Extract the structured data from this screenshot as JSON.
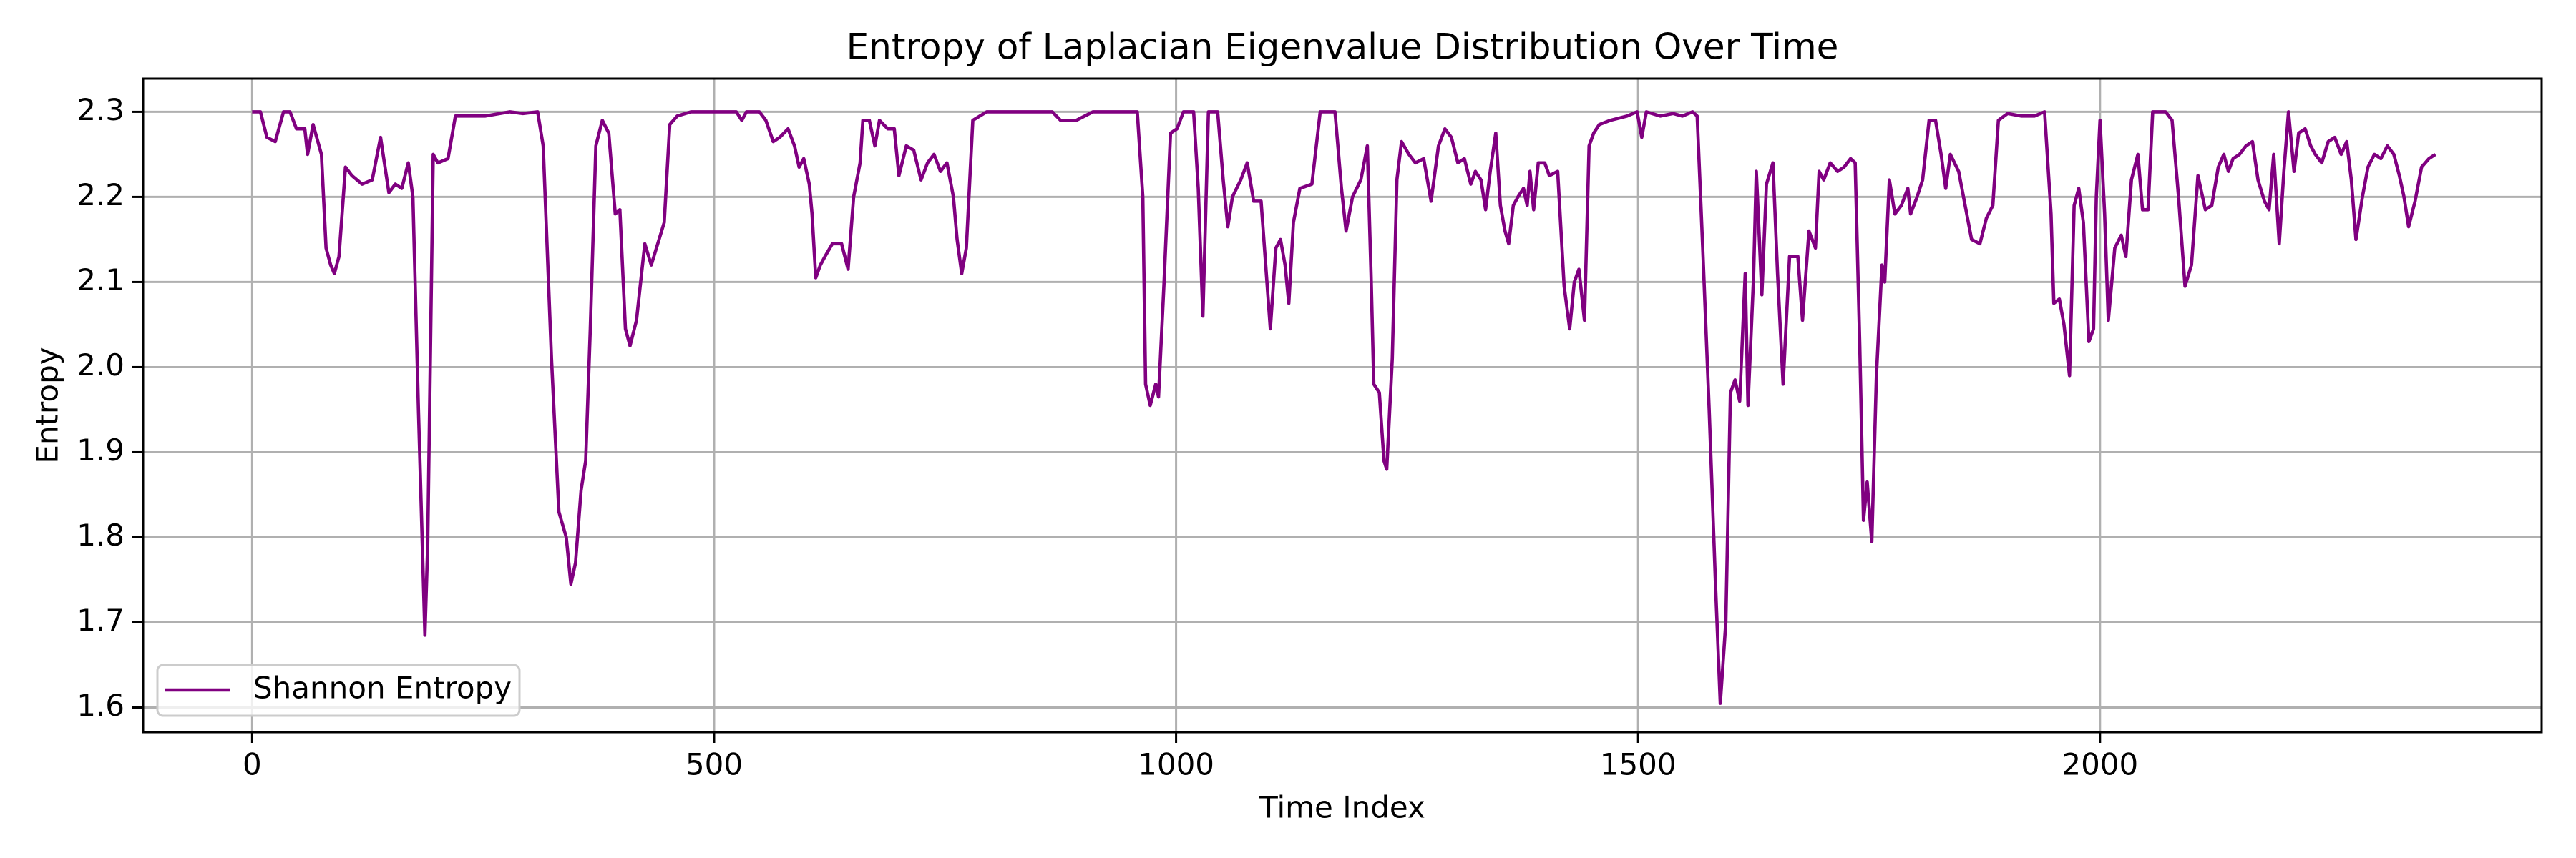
{
  "chart_data": {
    "type": "line",
    "title": "Entropy of Laplacian Eigenvalue Distribution Over Time",
    "x_label": "Time Index",
    "y_label": "Entropy",
    "xlim": [
      -118,
      2478
    ],
    "ylim": [
      1.571,
      2.339
    ],
    "xticks": [
      0,
      500,
      1000,
      1500,
      2000
    ],
    "yticks": [
      1.6,
      1.7,
      1.8,
      1.9,
      {
        "value": 2,
        "label": "2.0"
      },
      2.1,
      2.2,
      2.3
    ],
    "grid": true,
    "legend": "lower left",
    "x": [
      0,
      9,
      16,
      25,
      34,
      41,
      48,
      57,
      60,
      66,
      75,
      80,
      85,
      89,
      94,
      101,
      108,
      119,
      130,
      139,
      148,
      155,
      162,
      169,
      174,
      180,
      187,
      190,
      196,
      201,
      212,
      220,
      235,
      252,
      279,
      293,
      309,
      315,
      324,
      332,
      340,
      345,
      350,
      356,
      361,
      366,
      372,
      379,
      386,
      393,
      398,
      404,
      409,
      416,
      425,
      432,
      439,
      446,
      452,
      460,
      475,
      492,
      510,
      524,
      530,
      535,
      549,
      556,
      564,
      571,
      580,
      587,
      592,
      597,
      603,
      606,
      610,
      615,
      620,
      628,
      638,
      645,
      651,
      658,
      661,
      668,
      674,
      679,
      688,
      695,
      700,
      708,
      716,
      724,
      731,
      738,
      745,
      752,
      759,
      763,
      768,
      773,
      780,
      795,
      830,
      866,
      875,
      892,
      910,
      958,
      964,
      967,
      972,
      978,
      981,
      987,
      994,
      1001,
      1008,
      1019,
      1024,
      1029,
      1035,
      1045,
      1051,
      1056,
      1061,
      1070,
      1077,
      1084,
      1092,
      1097,
      1102,
      1108,
      1113,
      1118,
      1122,
      1127,
      1134,
      1147,
      1156,
      1172,
      1179,
      1184,
      1191,
      1200,
      1207,
      1211,
      1214,
      1220,
      1225,
      1228,
      1234,
      1239,
      1244,
      1252,
      1259,
      1268,
      1276,
      1284,
      1291,
      1298,
      1305,
      1312,
      1319,
      1324,
      1330,
      1335,
      1340,
      1346,
      1351,
      1356,
      1360,
      1365,
      1370,
      1376,
      1380,
      1383,
      1387,
      1392,
      1399,
      1404,
      1413,
      1420,
      1426,
      1431,
      1436,
      1442,
      1447,
      1452,
      1458,
      1470,
      1488,
      1499,
      1504,
      1509,
      1524,
      1538,
      1548,
      1559,
      1564,
      1570,
      1577,
      1584,
      1589,
      1595,
      1600,
      1605,
      1610,
      1616,
      1619,
      1625,
      1628,
      1634,
      1639,
      1646,
      1651,
      1657,
      1664,
      1673,
      1678,
      1685,
      1692,
      1696,
      1701,
      1708,
      1716,
      1723,
      1730,
      1735,
      1740,
      1744,
      1748,
      1753,
      1758,
      1764,
      1767,
      1772,
      1778,
      1785,
      1792,
      1795,
      1802,
      1808,
      1815,
      1822,
      1828,
      1833,
      1838,
      1847,
      1854,
      1861,
      1870,
      1877,
      1884,
      1890,
      1900,
      1915,
      1929,
      1940,
      1947,
      1950,
      1956,
      1961,
      1967,
      1972,
      1977,
      1982,
      1988,
      1993,
      1996,
      2000,
      2005,
      2009,
      2016,
      2023,
      2028,
      2034,
      2041,
      2046,
      2052,
      2057,
      2071,
      2078,
      2085,
      2092,
      2099,
      2106,
      2114,
      2121,
      2128,
      2134,
      2139,
      2144,
      2151,
      2158,
      2165,
      2171,
      2178,
      2183,
      2188,
      2194,
      2199,
      2204,
      2210,
      2215,
      2222,
      2228,
      2233,
      2240,
      2247,
      2254,
      2261,
      2267,
      2272,
      2277,
      2284,
      2290,
      2297,
      2304,
      2311,
      2318,
      2324,
      2329,
      2334,
      2341,
      2348,
      2356,
      2363
    ],
    "series": [
      {
        "name": "Shannon Entropy",
        "color": "#800080",
        "values": [
          2.3,
          2.3,
          2.27,
          2.265,
          2.3,
          2.3,
          2.28,
          2.28,
          2.25,
          2.285,
          2.25,
          2.14,
          2.12,
          2.11,
          2.13,
          2.235,
          2.225,
          2.215,
          2.22,
          2.27,
          2.205,
          2.215,
          2.21,
          2.24,
          2.2,
          1.95,
          1.685,
          1.79,
          2.25,
          2.24,
          2.245,
          2.295,
          2.295,
          2.295,
          2.3,
          2.298,
          2.3,
          2.26,
          2.01,
          1.83,
          1.8,
          1.745,
          1.77,
          1.855,
          1.89,
          2.045,
          2.26,
          2.29,
          2.275,
          2.18,
          2.185,
          2.045,
          2.025,
          2.055,
          2.145,
          2.12,
          2.145,
          2.17,
          2.285,
          2.295,
          2.3,
          2.3,
          2.3,
          2.3,
          2.29,
          2.3,
          2.3,
          2.29,
          2.265,
          2.27,
          2.28,
          2.26,
          2.235,
          2.245,
          2.215,
          2.18,
          2.105,
          2.12,
          2.13,
          2.145,
          2.145,
          2.115,
          2.2,
          2.24,
          2.29,
          2.29,
          2.26,
          2.29,
          2.28,
          2.28,
          2.225,
          2.26,
          2.255,
          2.22,
          2.24,
          2.25,
          2.23,
          2.24,
          2.2,
          2.15,
          2.11,
          2.14,
          2.29,
          2.3,
          2.3,
          2.3,
          2.29,
          2.29,
          2.3,
          2.3,
          2.2,
          1.98,
          1.955,
          1.98,
          1.965,
          2.1,
          2.275,
          2.28,
          2.3,
          2.3,
          2.21,
          2.06,
          2.3,
          2.3,
          2.22,
          2.165,
          2.2,
          2.22,
          2.24,
          2.195,
          2.195,
          2.12,
          2.045,
          2.14,
          2.15,
          2.12,
          2.075,
          2.17,
          2.21,
          2.215,
          2.3,
          2.3,
          2.21,
          2.16,
          2.2,
          2.22,
          2.26,
          2.11,
          1.98,
          1.97,
          1.89,
          1.88,
          2.01,
          2.22,
          2.265,
          2.25,
          2.24,
          2.245,
          2.195,
          2.26,
          2.28,
          2.27,
          2.24,
          2.245,
          2.215,
          2.23,
          2.22,
          2.185,
          2.23,
          2.275,
          2.19,
          2.16,
          2.145,
          2.19,
          2.2,
          2.21,
          2.19,
          2.23,
          2.185,
          2.24,
          2.24,
          2.225,
          2.23,
          2.095,
          2.045,
          2.1,
          2.115,
          2.055,
          2.26,
          2.275,
          2.285,
          2.29,
          2.295,
          2.3,
          2.27,
          2.3,
          2.295,
          2.298,
          2.295,
          2.3,
          2.295,
          2.14,
          1.95,
          1.74,
          1.605,
          1.7,
          1.97,
          1.985,
          1.96,
          2.11,
          1.955,
          2.105,
          2.23,
          2.085,
          2.215,
          2.24,
          2.11,
          1.98,
          2.13,
          2.13,
          2.055,
          2.16,
          2.14,
          2.23,
          2.22,
          2.24,
          2.23,
          2.235,
          2.245,
          2.24,
          2.025,
          1.82,
          1.865,
          1.795,
          1.99,
          2.12,
          2.1,
          2.22,
          2.18,
          2.19,
          2.21,
          2.18,
          2.2,
          2.22,
          2.29,
          2.29,
          2.25,
          2.21,
          2.25,
          2.23,
          2.19,
          2.15,
          2.145,
          2.175,
          2.19,
          2.29,
          2.298,
          2.295,
          2.295,
          2.3,
          2.18,
          2.075,
          2.08,
          2.05,
          1.99,
          2.19,
          2.21,
          2.17,
          2.03,
          2.045,
          2.2,
          2.29,
          2.18,
          2.055,
          2.14,
          2.155,
          2.13,
          2.22,
          2.25,
          2.185,
          2.185,
          2.3,
          2.3,
          2.29,
          2.2,
          2.095,
          2.12,
          2.225,
          2.185,
          2.19,
          2.235,
          2.25,
          2.23,
          2.245,
          2.25,
          2.26,
          2.265,
          2.22,
          2.195,
          2.185,
          2.25,
          2.145,
          2.23,
          2.3,
          2.23,
          2.275,
          2.28,
          2.26,
          2.25,
          2.24,
          2.265,
          2.27,
          2.25,
          2.265,
          2.22,
          2.15,
          2.2,
          2.235,
          2.25,
          2.245,
          2.26,
          2.25,
          2.225,
          2.2,
          2.165,
          2.195,
          2.235,
          2.245,
          2.25
        ]
      }
    ]
  }
}
